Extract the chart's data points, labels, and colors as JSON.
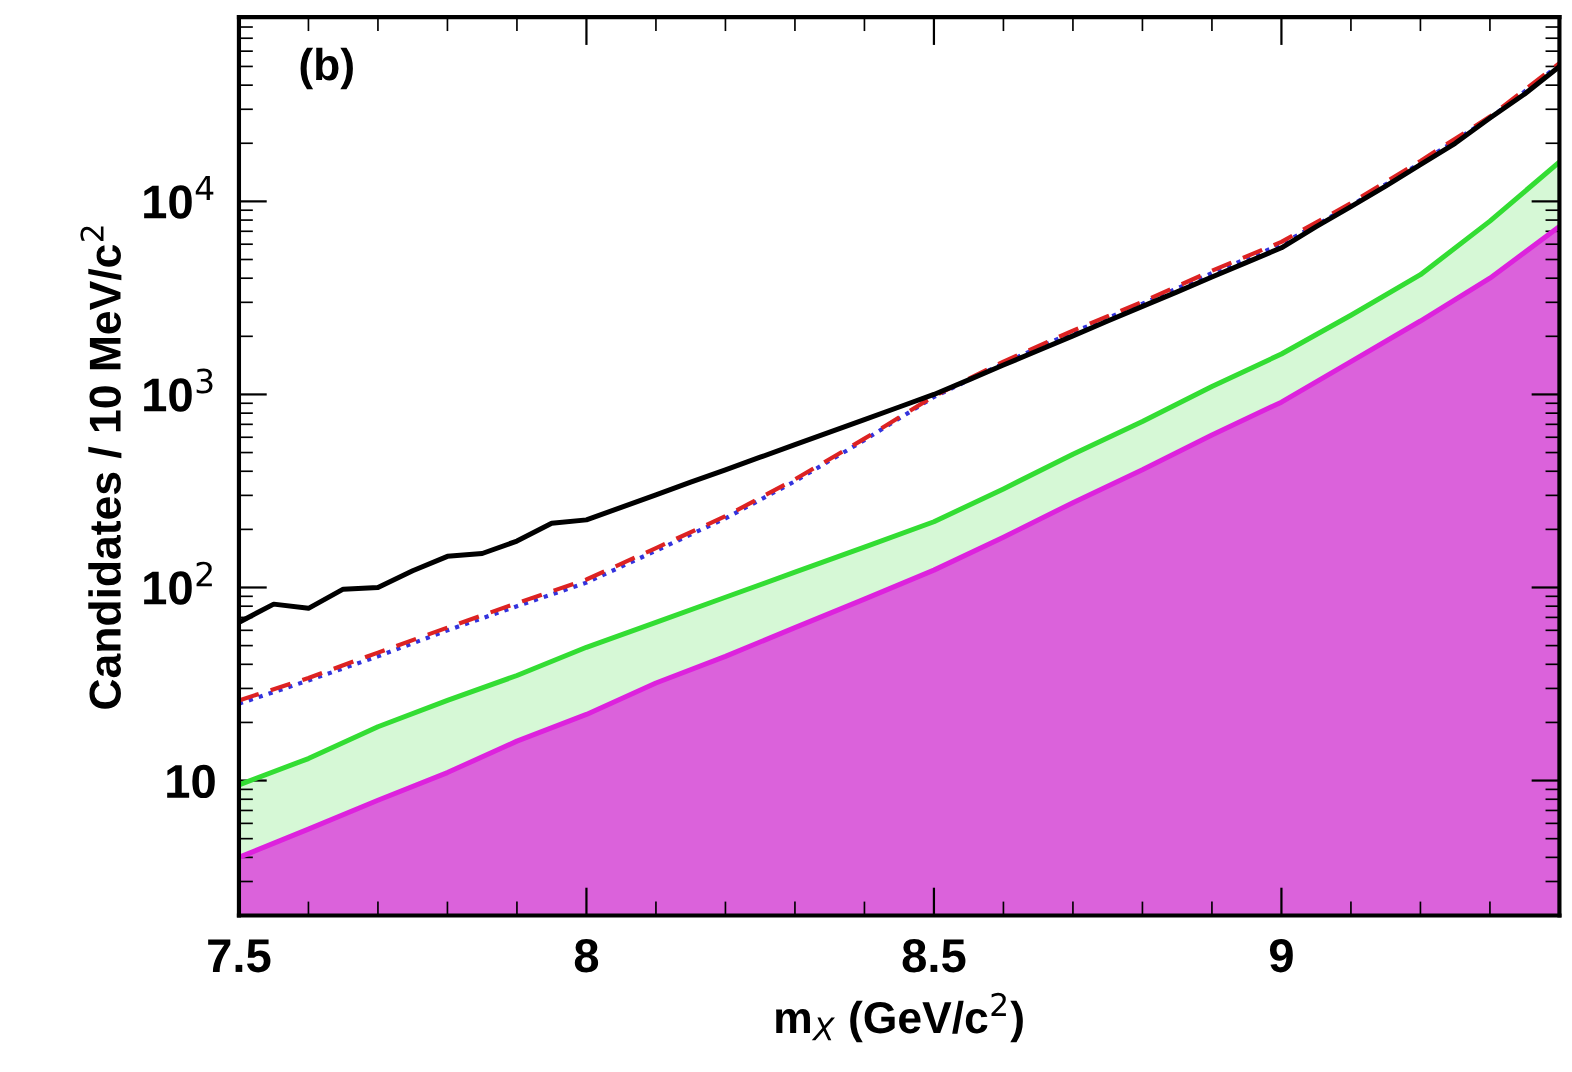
{
  "chart_data": {
    "type": "line",
    "xlabel": "m$_{X}$ (GeV/c$^{2}$)",
    "ylabel": "Candidates / 10 MeV/c$^{2}$",
    "annotations": [
      "(b)"
    ],
    "log": "y",
    "xlim": [
      7.5,
      9.4
    ],
    "xticks": [
      7.5,
      8,
      8.5,
      9
    ],
    "ylim": [
      2,
      90000
    ],
    "yticks": [
      10,
      {
        "value": 100,
        "label": "10$^{2}$"
      },
      {
        "value": 1000,
        "label": "10$^{3}$"
      },
      {
        "value": 10000,
        "label": "10$^{4}$"
      }
    ],
    "grid": false,
    "legend": false,
    "series": [
      {
        "type": "area",
        "color": "#33dd33",
        "x": [
          7.5,
          7.6,
          7.7,
          7.8,
          7.9,
          8.0,
          8.1,
          8.2,
          8.3,
          8.4,
          8.5,
          8.6,
          8.7,
          8.8,
          8.9,
          9.0,
          9.1,
          9.2,
          9.3,
          9.4
        ],
        "values": [
          9.5,
          13,
          19,
          26,
          35,
          49,
          66,
          89,
          120,
          162,
          219,
          324,
          490,
          724,
          1100,
          1620,
          2570,
          4170,
          7900,
          16000
        ]
      },
      {
        "type": "area",
        "color": "#dd22dd",
        "x": [
          7.5,
          7.6,
          7.7,
          7.8,
          7.9,
          8.0,
          8.1,
          8.2,
          8.3,
          8.4,
          8.5,
          8.6,
          8.7,
          8.8,
          8.9,
          9.0,
          9.1,
          9.2,
          9.3,
          9.4
        ],
        "values": [
          4.0,
          5.6,
          7.9,
          11,
          16,
          22,
          32,
          44,
          62,
          87,
          123,
          182,
          275,
          407,
          617,
          912,
          1480,
          2400,
          4000,
          7400
        ]
      },
      {
        "type": "line",
        "color": "#3333dd",
        "line_style": "dotted",
        "x": [
          7.5,
          7.6,
          7.7,
          7.8,
          7.9,
          8.0,
          8.1,
          8.2,
          8.3,
          8.4,
          8.5,
          8.6,
          8.7,
          8.8,
          8.9,
          9.0,
          9.1,
          9.2,
          9.3,
          9.4
        ],
        "values": [
          25,
          33,
          44,
          60,
          80,
          106,
          155,
          228,
          355,
          580,
          970,
          1450,
          2100,
          2950,
          4250,
          6000,
          9500,
          15800,
          27000,
          51000
        ]
      },
      {
        "type": "line",
        "color": "#dd2222",
        "line_style": "dashed",
        "x": [
          7.5,
          7.6,
          7.7,
          7.8,
          7.9,
          8.0,
          8.1,
          8.2,
          8.3,
          8.4,
          8.5,
          8.6,
          8.7,
          8.8,
          8.9,
          9.0,
          9.1,
          9.2,
          9.3,
          9.4
        ],
        "values": [
          26,
          34,
          46,
          62,
          83,
          110,
          160,
          234,
          363,
          590,
          980,
          1480,
          2140,
          3020,
          4370,
          6170,
          9800,
          16200,
          27500,
          52000
        ]
      },
      {
        "color": "#000000",
        "x": [
          7.5,
          7.55,
          7.6,
          7.65,
          7.7,
          7.75,
          7.8,
          7.85,
          7.9,
          7.95,
          8.0,
          8.05,
          8.1,
          8.15,
          8.2,
          8.25,
          8.3,
          8.35,
          8.4,
          8.45,
          8.5,
          8.55,
          8.6,
          8.65,
          8.7,
          8.75,
          8.8,
          8.85,
          8.9,
          8.95,
          9.0,
          9.05,
          9.1,
          9.15,
          9.2,
          9.25,
          9.3,
          9.35,
          9.4
        ],
        "values": [
          66,
          82,
          78,
          98,
          100,
          122,
          145,
          150,
          174,
          215,
          224,
          260,
          302,
          351,
          407,
          473,
          550,
          638,
          741,
          861,
          1000,
          1190,
          1420,
          1690,
          2010,
          2400,
          2860,
          3400,
          4060,
          4830,
          5750,
          7400,
          9400,
          12000,
          15500,
          20000,
          27000,
          36000,
          50000
        ]
      }
    ]
  }
}
